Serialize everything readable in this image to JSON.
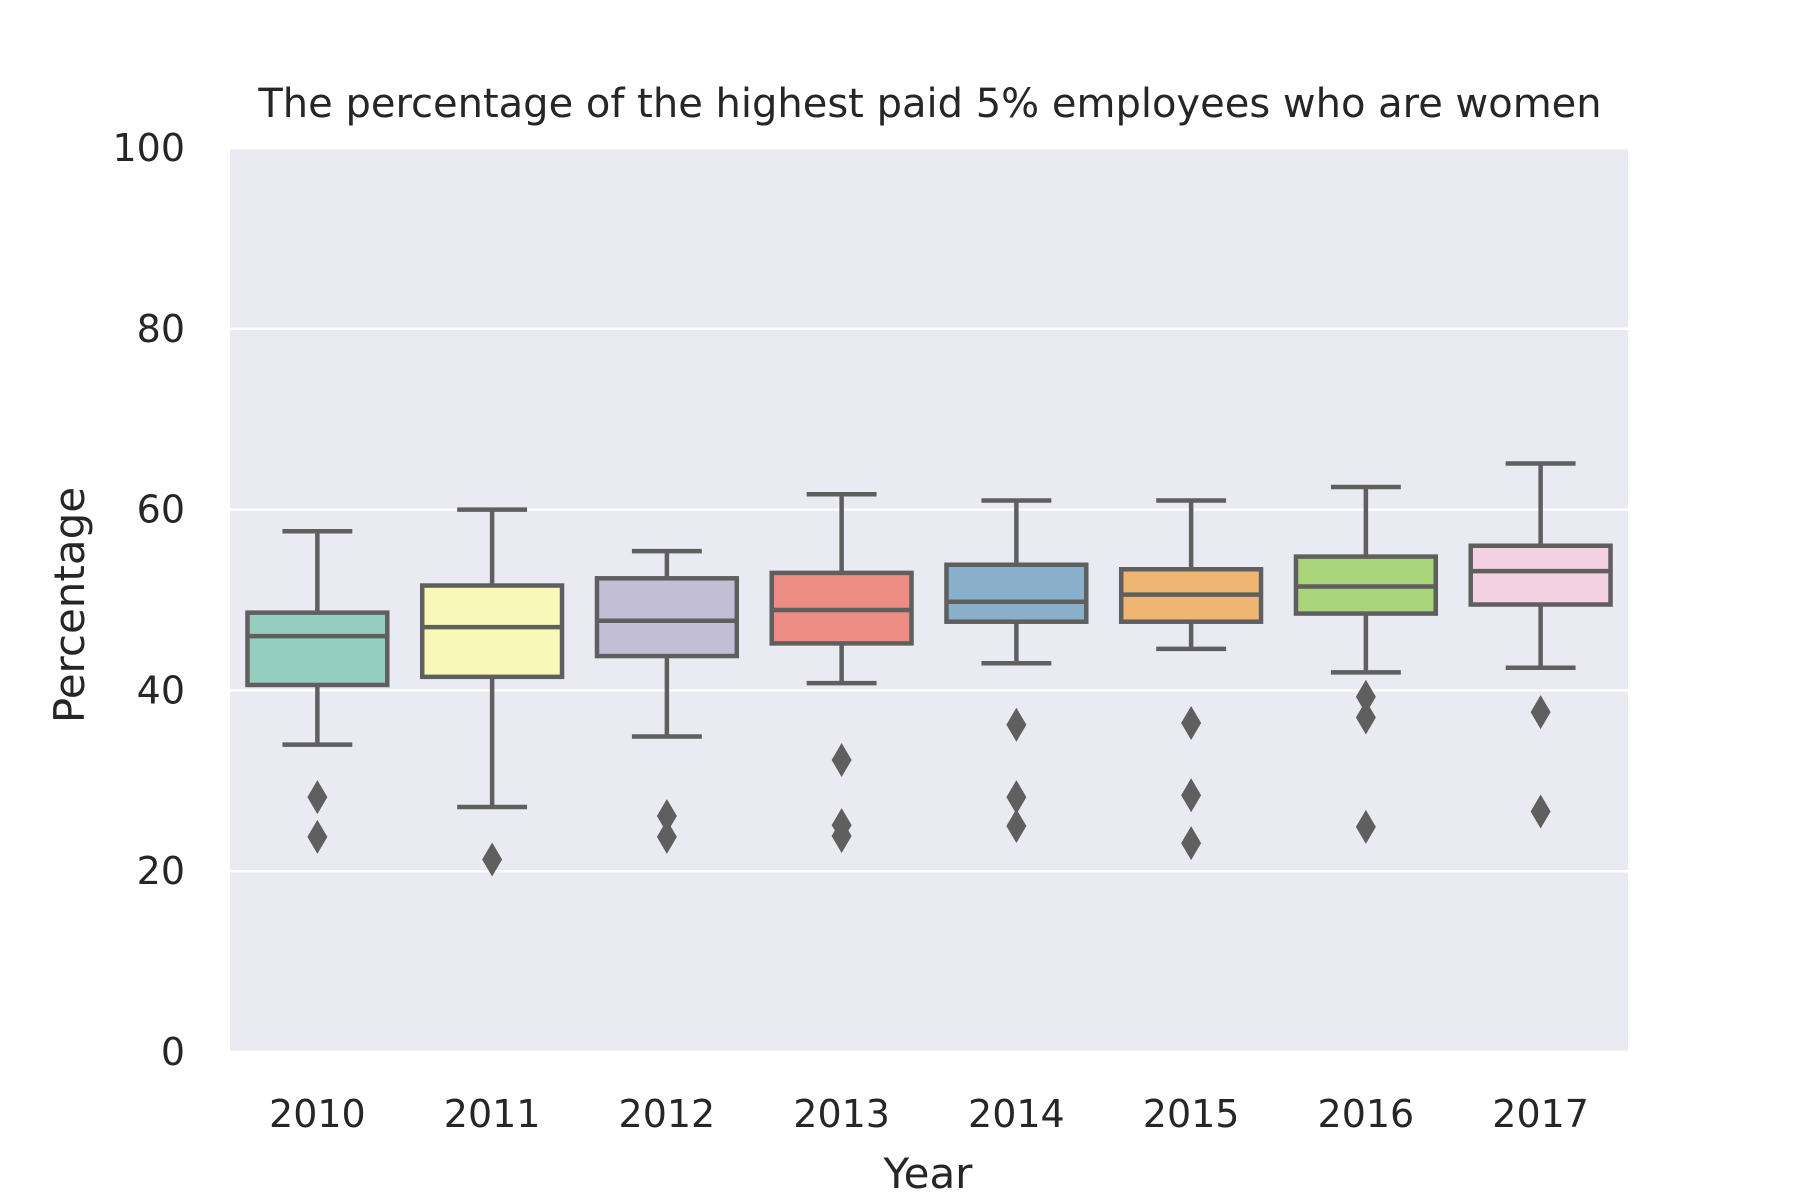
{
  "chart_data": {
    "type": "box",
    "title": "The percentage of the highest paid 5% employees who are women",
    "xlabel": "Year",
    "ylabel": "Percentage",
    "ylim": [
      0,
      100
    ],
    "yticks": [
      "0",
      "20",
      "40",
      "60",
      "80",
      "100"
    ],
    "grid": true,
    "categories": [
      "2010",
      "2011",
      "2012",
      "2013",
      "2014",
      "2015",
      "2016",
      "2017"
    ],
    "boxes": [
      {
        "category": "2010",
        "whisker_low": 34.0,
        "q1": 40.6,
        "median": 46.0,
        "q3": 48.6,
        "whisker_high": 57.6,
        "outliers": [
          28.2,
          23.8
        ],
        "color": "#95cdc1"
      },
      {
        "category": "2011",
        "whisker_low": 27.1,
        "q1": 41.5,
        "median": 47.0,
        "q3": 51.6,
        "whisker_high": 60.0,
        "outliers": [
          21.3
        ],
        "color": "#f8f8b9"
      },
      {
        "category": "2012",
        "whisker_low": 34.9,
        "q1": 43.8,
        "median": 47.7,
        "q3": 52.4,
        "whisker_high": 55.4,
        "outliers": [
          26.1,
          23.8
        ],
        "color": "#c2bed6"
      },
      {
        "category": "2013",
        "whisker_low": 40.8,
        "q1": 45.2,
        "median": 48.9,
        "q3": 53.0,
        "whisker_high": 61.7,
        "outliers": [
          32.3,
          25.1,
          23.9
        ],
        "color": "#ec8c83"
      },
      {
        "category": "2014",
        "whisker_low": 43.0,
        "q1": 47.6,
        "median": 49.8,
        "q3": 53.9,
        "whisker_high": 61.0,
        "outliers": [
          36.2,
          28.2,
          25.0
        ],
        "color": "#89afcb"
      },
      {
        "category": "2015",
        "whisker_low": 44.6,
        "q1": 47.6,
        "median": 50.6,
        "q3": 53.4,
        "whisker_high": 61.0,
        "outliers": [
          36.4,
          28.4,
          23.1
        ],
        "color": "#efb572"
      },
      {
        "category": "2016",
        "whisker_low": 42.0,
        "q1": 48.5,
        "median": 51.5,
        "q3": 54.8,
        "whisker_high": 62.5,
        "outliers": [
          39.3,
          37.0,
          24.9
        ],
        "color": "#aad479"
      },
      {
        "category": "2017",
        "whisker_low": 42.5,
        "q1": 49.5,
        "median": 53.2,
        "q3": 56.0,
        "whisker_high": 65.1,
        "outliers": [
          37.6,
          26.6
        ],
        "color": "#f4d0e3"
      }
    ],
    "colors": {
      "plot_background": "#eaeaf2",
      "grid": "#ffffff",
      "box_edge": "#5f5f5f",
      "text": "#262626"
    }
  }
}
